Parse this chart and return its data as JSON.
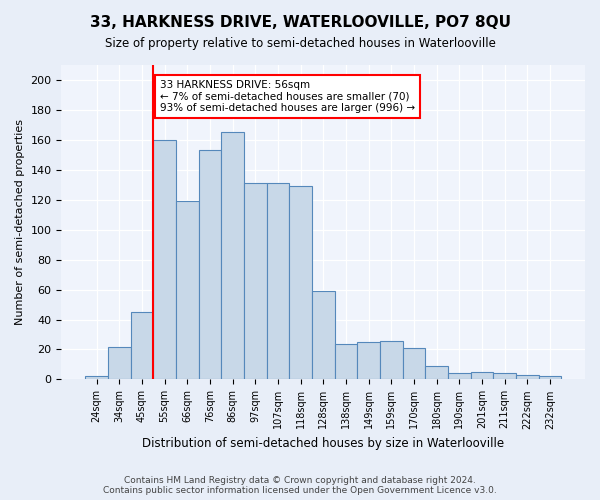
{
  "title": "33, HARKNESS DRIVE, WATERLOOVILLE, PO7 8QU",
  "subtitle": "Size of property relative to semi-detached houses in Waterlooville",
  "xlabel": "Distribution of semi-detached houses by size in Waterlooville",
  "ylabel": "Number of semi-detached properties",
  "bar_labels": [
    "24sqm",
    "34sqm",
    "45sqm",
    "55sqm",
    "66sqm",
    "76sqm",
    "86sqm",
    "97sqm",
    "107sqm",
    "118sqm",
    "128sqm",
    "138sqm",
    "149sqm",
    "159sqm",
    "170sqm",
    "180sqm",
    "190sqm",
    "201sqm",
    "211sqm",
    "222sqm",
    "232sqm"
  ],
  "bar_values": [
    2,
    22,
    45,
    160,
    119,
    153,
    165,
    131,
    131,
    129,
    59,
    24,
    25,
    26,
    21,
    9,
    4,
    5,
    4,
    3,
    2
  ],
  "bar_color": "#c8d8e8",
  "bar_edge_color": "#5588bb",
  "vline_x_index": 3,
  "vline_color": "red",
  "annotation_text": "33 HARKNESS DRIVE: 56sqm\n← 7% of semi-detached houses are smaller (70)\n93% of semi-detached houses are larger (996) →",
  "annotation_box_color": "white",
  "annotation_box_edge": "red",
  "ylim": [
    0,
    210
  ],
  "yticks": [
    0,
    20,
    40,
    60,
    80,
    100,
    120,
    140,
    160,
    180,
    200
  ],
  "footer_text": "Contains HM Land Registry data © Crown copyright and database right 2024.\nContains public sector information licensed under the Open Government Licence v3.0.",
  "bg_color": "#e8eef8",
  "plot_bg_color": "#f0f4fc"
}
